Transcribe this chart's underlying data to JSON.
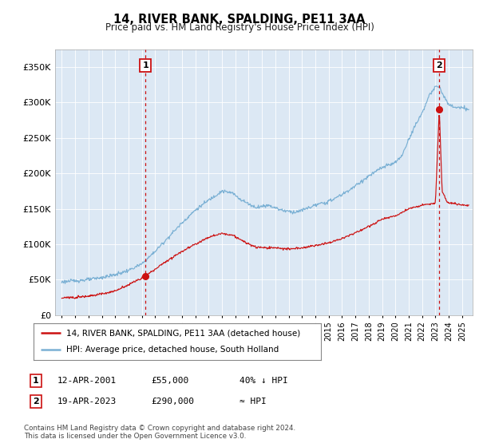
{
  "title": "14, RIVER BANK, SPALDING, PE11 3AA",
  "subtitle": "Price paid vs. HM Land Registry's House Price Index (HPI)",
  "ylabel_ticks": [
    "£0",
    "£50K",
    "£100K",
    "£150K",
    "£200K",
    "£250K",
    "£300K",
    "£350K"
  ],
  "ytick_values": [
    0,
    50000,
    100000,
    150000,
    200000,
    250000,
    300000,
    350000
  ],
  "ylim": [
    0,
    375000
  ],
  "xlim_start": 1994.5,
  "xlim_end": 2025.8,
  "hpi_color": "#7ab0d4",
  "price_color": "#cc1111",
  "vline_color": "#cc1111",
  "grid_color": "#d8e4f0",
  "bg_color": "#e8f0f8",
  "plot_bg": "#dce8f4",
  "purchase1_year": 2001.28,
  "purchase1_price": 55000,
  "purchase1_label": "1",
  "purchase2_year": 2023.29,
  "purchase2_price": 290000,
  "purchase2_label": "2",
  "legend_line1": "14, RIVER BANK, SPALDING, PE11 3AA (detached house)",
  "legend_line2": "HPI: Average price, detached house, South Holland",
  "note1_label": "1",
  "note1_date": "12-APR-2001",
  "note1_price": "£55,000",
  "note1_hpi": "40% ↓ HPI",
  "note2_label": "2",
  "note2_date": "19-APR-2023",
  "note2_price": "£290,000",
  "note2_hpi": "≈ HPI",
  "footer": "Contains HM Land Registry data © Crown copyright and database right 2024.\nThis data is licensed under the Open Government Licence v3.0."
}
